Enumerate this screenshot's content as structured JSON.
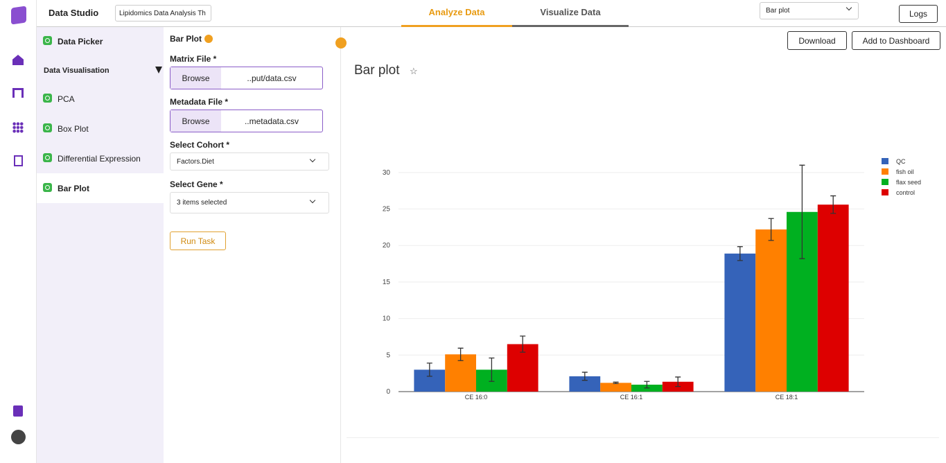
{
  "header": {
    "app_title": "Data Studio",
    "project": "Lipidomics Data Analysis Th",
    "tabs": [
      "Analyze Data",
      "Visualize Data"
    ],
    "plot_select": "Bar plot",
    "logs": "Logs"
  },
  "sidebar": {
    "data_picker": "Data Picker",
    "section": "Data Visualisation",
    "items": [
      "PCA",
      "Box Plot",
      "Differential Expression",
      "Bar Plot"
    ]
  },
  "form": {
    "title": "Bar Plot",
    "matrix_label": "Matrix File *",
    "matrix_browse": "Browse",
    "matrix_file": "..put/data.csv",
    "metadata_label": "Metadata File *",
    "metadata_browse": "Browse",
    "metadata_file": "..metadata.csv",
    "cohort_label": "Select Cohort *",
    "cohort_value": "Factors.Diet",
    "gene_label": "Select Gene *",
    "gene_value": "3 items selected",
    "run": "Run Task"
  },
  "toolbar": {
    "download": "Download",
    "add": "Add to Dashboard",
    "heading": "Bar plot"
  },
  "chart_data": {
    "type": "bar",
    "categories": [
      "CE 16:0",
      "CE 16:1",
      "CE 18:1"
    ],
    "series": [
      {
        "name": "QC",
        "color": "#3563b9",
        "values": [
          3.0,
          2.1,
          18.9
        ],
        "errors": [
          0.9,
          0.55,
          0.95
        ]
      },
      {
        "name": "fish oil",
        "color": "#ff8000",
        "values": [
          5.1,
          1.2,
          22.2
        ],
        "errors": [
          0.85,
          0.1,
          1.5
        ]
      },
      {
        "name": "flax seed",
        "color": "#00b020",
        "values": [
          3.0,
          0.95,
          24.6
        ],
        "errors": [
          1.6,
          0.45,
          6.4
        ]
      },
      {
        "name": "control",
        "color": "#dd0000",
        "values": [
          6.5,
          1.35,
          25.6
        ],
        "errors": [
          1.1,
          0.65,
          1.2
        ]
      }
    ],
    "ylim": [
      0,
      31.6
    ],
    "yticks": [
      0,
      5,
      10,
      15,
      20,
      25,
      30
    ],
    "grid": true,
    "legend": "right"
  }
}
